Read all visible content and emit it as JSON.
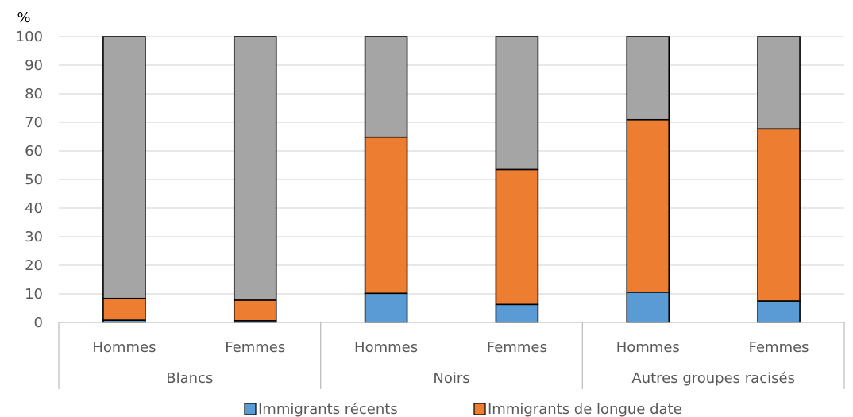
{
  "chart_data": {
    "type": "bar",
    "stacked": true,
    "y_unit_label": "%",
    "ylim": [
      0,
      100
    ],
    "yticks": [
      0,
      10,
      20,
      30,
      40,
      50,
      60,
      70,
      80,
      90,
      100
    ],
    "grid": true,
    "legend_position": "bottom",
    "groups": [
      "Blancs",
      "Noirs",
      "Autres groupes racisés"
    ],
    "categories": [
      "Hommes",
      "Femmes",
      "Hommes",
      "Femmes",
      "Hommes",
      "Femmes"
    ],
    "series": [
      {
        "name": "Immigrants récents",
        "color": "#5B9BD5",
        "values": [
          0.8,
          0.6,
          10.2,
          6.3,
          10.6,
          7.5
        ]
      },
      {
        "name": "Immigrants de longue date",
        "color": "#ED7D31",
        "values": [
          7.6,
          7.2,
          54.6,
          47.2,
          60.3,
          60.2
        ]
      },
      {
        "color": "#A5A5A5",
        "values": [
          91.6,
          92.2,
          35.2,
          46.5,
          29.1,
          32.3
        ]
      }
    ]
  }
}
